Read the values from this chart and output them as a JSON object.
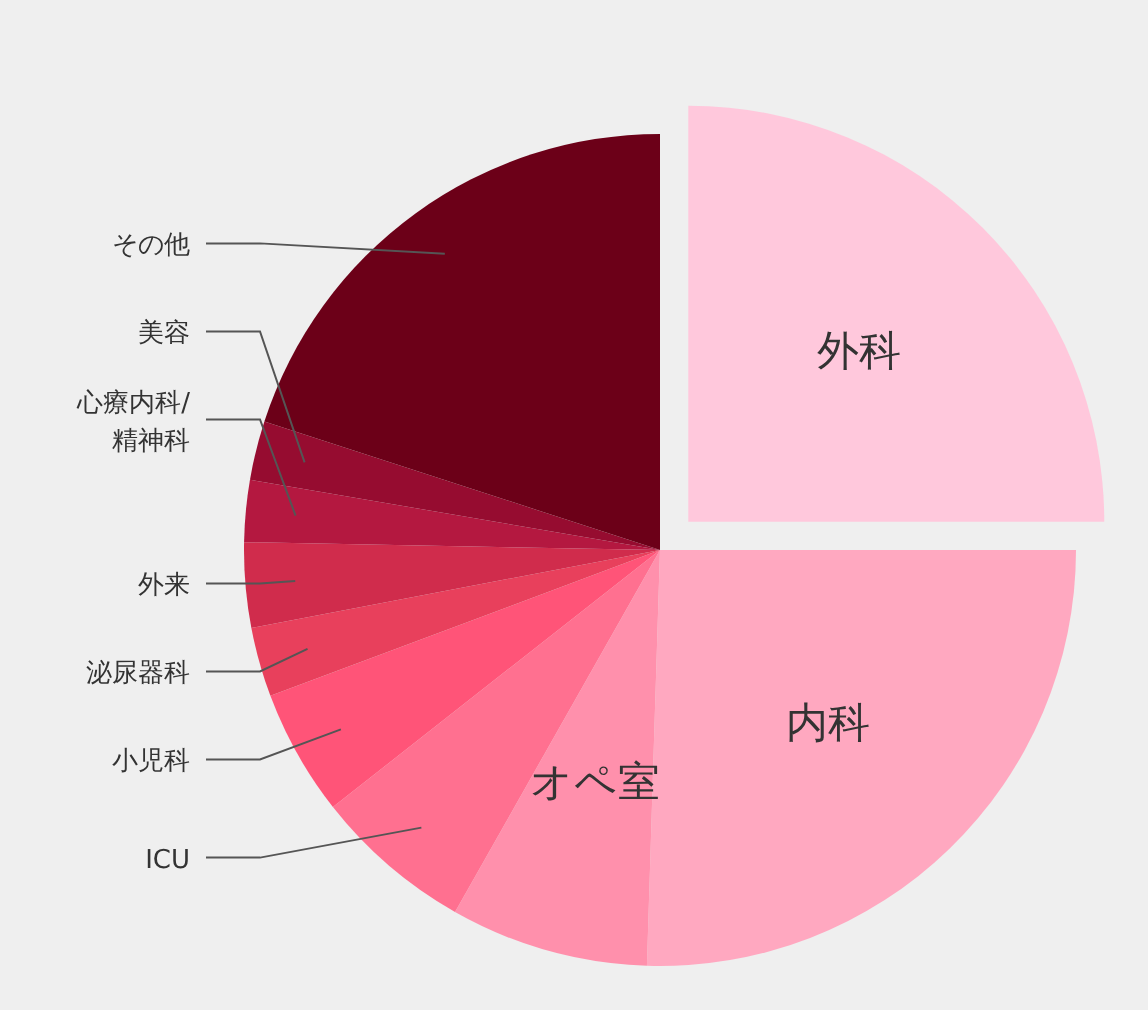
{
  "chart_data": {
    "type": "pie",
    "categories": [
      "外科",
      "内科",
      "オペ室",
      "ICU",
      "小児科",
      "泌尿器科",
      "外来",
      "心療内科/精神科",
      "美容",
      "その他"
    ],
    "values": [
      25,
      25.5,
      7.7,
      6.2,
      4.9,
      2.7,
      3.3,
      2.4,
      2.3,
      20
    ],
    "colors": [
      "#ffc8dc",
      "#ffa8c0",
      "#ff90ac",
      "#ff7090",
      "#ff5478",
      "#e8405c",
      "#d02c4c",
      "#b41840",
      "#960c30",
      "#6c0018"
    ]
  }
}
